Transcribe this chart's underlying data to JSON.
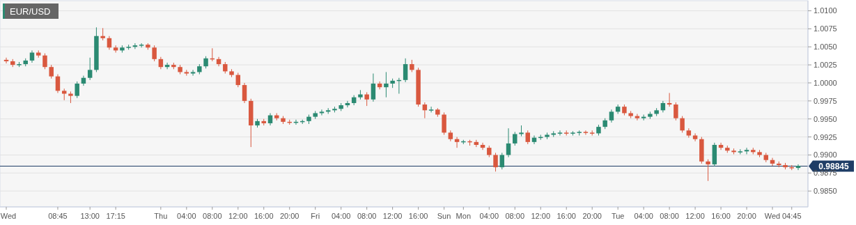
{
  "chart_data": {
    "type": "candlestick",
    "title": "EUR/USD",
    "categories": [
      "Wed",
      null,
      null,
      null,
      null,
      null,
      null,
      null,
      "08:45",
      null,
      null,
      null,
      null,
      "13:00",
      null,
      null,
      null,
      "17:15",
      null,
      null,
      null,
      null,
      null,
      null,
      "Thu",
      null,
      null,
      null,
      "04:00",
      null,
      null,
      null,
      "08:00",
      null,
      null,
      null,
      "12:00",
      null,
      null,
      null,
      "16:00",
      null,
      null,
      null,
      "20:00",
      null,
      null,
      null,
      "Fri",
      null,
      null,
      null,
      "04:00",
      null,
      null,
      null,
      "08:00",
      null,
      null,
      null,
      "12:00",
      null,
      null,
      null,
      "16:00",
      null,
      null,
      null,
      "Sun",
      null,
      null,
      "Mon",
      null,
      null,
      null,
      "04:00",
      null,
      null,
      null,
      "08:00",
      null,
      null,
      null,
      "12:00",
      null,
      null,
      null,
      "16:00",
      null,
      null,
      null,
      "20:00",
      null,
      null,
      null,
      "Tue",
      null,
      null,
      null,
      "04:00",
      null,
      null,
      null,
      "08:00",
      null,
      null,
      null,
      "12:00",
      null,
      null,
      null,
      "16:00",
      null,
      null,
      null,
      "20:00",
      null,
      null,
      null,
      "Wed",
      null,
      null,
      "04:45",
      null
    ],
    "ohlc": [
      [
        1.0032,
        1.0035,
        1.0027,
        1.003
      ],
      [
        1.003,
        1.0033,
        1.0022,
        1.0025
      ],
      [
        1.0025,
        1.0029,
        1.0022,
        1.0026
      ],
      [
        1.0026,
        1.0034,
        1.0023,
        1.0031
      ],
      [
        1.0031,
        1.0045,
        1.0028,
        1.0042
      ],
      [
        1.0042,
        1.0045,
        1.0035,
        1.0038
      ],
      [
        1.0038,
        1.0041,
        1.0019,
        1.0022
      ],
      [
        1.0022,
        1.0025,
        1.0006,
        1.0009
      ],
      [
        1.0009,
        1.0012,
        0.9986,
        0.9989
      ],
      [
        0.9989,
        0.9992,
        0.9976,
        0.9985
      ],
      [
        0.9985,
        0.9988,
        0.9972,
        0.9982
      ],
      [
        0.9982,
        1.0002,
        0.9979,
        0.9999
      ],
      [
        0.9999,
        1.001,
        0.9996,
        1.0007
      ],
      [
        1.0007,
        1.0035,
        1.0004,
        1.0018
      ],
      [
        1.0018,
        1.0077,
        1.0015,
        1.0065
      ],
      [
        1.0065,
        1.0076,
        1.0059,
        1.0062
      ],
      [
        1.0062,
        1.0065,
        1.0046,
        1.0049
      ],
      [
        1.0049,
        1.0052,
        1.0042,
        1.0045
      ],
      [
        1.0045,
        1.0052,
        1.0042,
        1.0049
      ],
      [
        1.0049,
        1.0053,
        1.0046,
        1.005
      ],
      [
        1.005,
        1.0055,
        1.0047,
        1.0052
      ],
      [
        1.0052,
        1.0055,
        1.0049,
        1.0053
      ],
      [
        1.0053,
        1.0055,
        1.0046,
        1.0049
      ],
      [
        1.0049,
        1.0052,
        1.003,
        1.0033
      ],
      [
        1.0033,
        1.0036,
        1.0019,
        1.0022
      ],
      [
        1.0022,
        1.0028,
        1.0019,
        1.0025
      ],
      [
        1.0025,
        1.0028,
        1.0019,
        1.0022
      ],
      [
        1.0022,
        1.0025,
        1.0012,
        1.0015
      ],
      [
        1.0015,
        1.0018,
        1.001,
        1.0013
      ],
      [
        1.0013,
        1.0018,
        1.001,
        1.0015
      ],
      [
        1.0015,
        1.0026,
        1.0012,
        1.0023
      ],
      [
        1.0023,
        1.0037,
        1.002,
        1.0034
      ],
      [
        1.0034,
        1.0048,
        1.003,
        1.0033
      ],
      [
        1.0033,
        1.0036,
        1.0023,
        1.0026
      ],
      [
        1.0026,
        1.0029,
        1.0013,
        1.0016
      ],
      [
        1.0016,
        1.0019,
        1.0008,
        1.0011
      ],
      [
        1.0011,
        1.0014,
        0.9994,
        0.9997
      ],
      [
        0.9997,
        1.0,
        0.9972,
        0.9975
      ],
      [
        0.9975,
        0.9978,
        0.9911,
        0.9941
      ],
      [
        0.9941,
        0.995,
        0.9938,
        0.9947
      ],
      [
        0.9947,
        0.995,
        0.9941,
        0.9944
      ],
      [
        0.9944,
        0.9958,
        0.9941,
        0.9955
      ],
      [
        0.9955,
        0.9958,
        0.9948,
        0.9951
      ],
      [
        0.9951,
        0.9954,
        0.9943,
        0.9946
      ],
      [
        0.9946,
        0.9949,
        0.9942,
        0.9945
      ],
      [
        0.9945,
        0.9949,
        0.9942,
        0.9946
      ],
      [
        0.9946,
        0.9949,
        0.9943,
        0.9947
      ],
      [
        0.9947,
        0.9956,
        0.9943,
        0.9953
      ],
      [
        0.9953,
        0.9961,
        0.995,
        0.9958
      ],
      [
        0.9958,
        0.9963,
        0.9955,
        0.996
      ],
      [
        0.996,
        0.9965,
        0.9957,
        0.9962
      ],
      [
        0.9962,
        0.9967,
        0.9959,
        0.9964
      ],
      [
        0.9964,
        0.9972,
        0.9961,
        0.9969
      ],
      [
        0.9969,
        0.9975,
        0.9966,
        0.9972
      ],
      [
        0.9972,
        0.9983,
        0.9969,
        0.998
      ],
      [
        0.998,
        0.999,
        0.9977,
        0.9984
      ],
      [
        0.9984,
        0.9987,
        0.9968,
        0.9977
      ],
      [
        0.9977,
        1.0013,
        0.9974,
        0.9999
      ],
      [
        0.9999,
        1.0002,
        0.9991,
        0.9994
      ],
      [
        0.9994,
        1.0015,
        0.998,
        0.9999
      ],
      [
        0.9999,
        1.0006,
        0.9993,
        1.0003
      ],
      [
        1.0003,
        1.0007,
        0.9985,
        1.0004
      ],
      [
        1.0004,
        1.0034,
        1.0001,
        1.0026
      ],
      [
        1.0026,
        1.0032,
        1.0015,
        1.0018
      ],
      [
        1.0018,
        1.0021,
        0.9967,
        0.997
      ],
      [
        0.997,
        0.9973,
        0.9951,
        0.9962
      ],
      [
        0.9962,
        0.9967,
        0.9959,
        0.9963
      ],
      [
        0.9963,
        0.9965,
        0.9953,
        0.9956
      ],
      [
        0.9956,
        0.9959,
        0.9928,
        0.9931
      ],
      [
        0.9931,
        0.9934,
        0.9919,
        0.9922
      ],
      [
        0.9922,
        0.9925,
        0.991,
        0.9918
      ],
      [
        0.9918,
        0.9921,
        0.9915,
        0.9919
      ],
      [
        0.9919,
        0.9921,
        0.9913,
        0.9918
      ],
      [
        0.9918,
        0.9921,
        0.9911,
        0.9914
      ],
      [
        0.9914,
        0.9917,
        0.9907,
        0.991
      ],
      [
        0.991,
        0.9913,
        0.9897,
        0.99
      ],
      [
        0.99,
        0.9903,
        0.9877,
        0.9883
      ],
      [
        0.9883,
        0.9903,
        0.988,
        0.99
      ],
      [
        0.99,
        0.9937,
        0.9897,
        0.9916
      ],
      [
        0.9916,
        0.9932,
        0.9913,
        0.9929
      ],
      [
        0.9929,
        0.9941,
        0.9926,
        0.9931
      ],
      [
        0.9931,
        0.9934,
        0.9915,
        0.9918
      ],
      [
        0.9918,
        0.9927,
        0.9915,
        0.9924
      ],
      [
        0.9924,
        0.9928,
        0.9921,
        0.9925
      ],
      [
        0.9925,
        0.9931,
        0.9922,
        0.9928
      ],
      [
        0.9928,
        0.9933,
        0.9925,
        0.993
      ],
      [
        0.993,
        0.9934,
        0.9927,
        0.9931
      ],
      [
        0.9931,
        0.9934,
        0.9927,
        0.993
      ],
      [
        0.993,
        0.9933,
        0.9927,
        0.9931
      ],
      [
        0.9931,
        0.9934,
        0.9927,
        0.9932
      ],
      [
        0.9932,
        0.9934,
        0.9928,
        0.9931
      ],
      [
        0.9931,
        0.9934,
        0.9927,
        0.993
      ],
      [
        0.993,
        0.9942,
        0.9927,
        0.9939
      ],
      [
        0.9939,
        0.9951,
        0.9936,
        0.9948
      ],
      [
        0.9948,
        0.9963,
        0.9945,
        0.996
      ],
      [
        0.996,
        0.997,
        0.9957,
        0.9967
      ],
      [
        0.9967,
        0.997,
        0.9955,
        0.9958
      ],
      [
        0.9958,
        0.9961,
        0.9951,
        0.9954
      ],
      [
        0.9954,
        0.9957,
        0.9948,
        0.9951
      ],
      [
        0.9951,
        0.9956,
        0.9948,
        0.9953
      ],
      [
        0.9953,
        0.996,
        0.995,
        0.9957
      ],
      [
        0.9957,
        0.9965,
        0.9954,
        0.9962
      ],
      [
        0.9962,
        0.9975,
        0.9959,
        0.9972
      ],
      [
        0.9972,
        0.9986,
        0.9967,
        0.997
      ],
      [
        0.997,
        0.9973,
        0.9948,
        0.9951
      ],
      [
        0.9951,
        0.9954,
        0.9931,
        0.9934
      ],
      [
        0.9934,
        0.9937,
        0.9924,
        0.9927
      ],
      [
        0.9927,
        0.993,
        0.9919,
        0.9922
      ],
      [
        0.9922,
        0.9925,
        0.9888,
        0.9891
      ],
      [
        0.9891,
        0.9894,
        0.9864,
        0.9887
      ],
      [
        0.9887,
        0.9917,
        0.9884,
        0.9914
      ],
      [
        0.9914,
        0.9917,
        0.9907,
        0.991
      ],
      [
        0.991,
        0.9913,
        0.9903,
        0.9906
      ],
      [
        0.9906,
        0.9909,
        0.9901,
        0.9904
      ],
      [
        0.9904,
        0.9908,
        0.9901,
        0.9905
      ],
      [
        0.9905,
        0.991,
        0.9901,
        0.9907
      ],
      [
        0.9907,
        0.991,
        0.9901,
        0.9904
      ],
      [
        0.9904,
        0.9907,
        0.9897,
        0.99
      ],
      [
        0.99,
        0.9903,
        0.989,
        0.9893
      ],
      [
        0.9893,
        0.9896,
        0.9885,
        0.9888
      ],
      [
        0.9888,
        0.9891,
        0.9883,
        0.9886
      ],
      [
        0.9886,
        0.9889,
        0.988,
        0.9883
      ],
      [
        0.9883,
        0.9886,
        0.9879,
        0.9882
      ],
      [
        0.9882,
        0.9887,
        0.9879,
        0.9885
      ]
    ],
    "colors": [
      "#d9583f",
      "#d9583f",
      "#2b8a72",
      "#2b8a72",
      "#2b8a72",
      "#d9583f",
      "#d9583f",
      "#d9583f",
      "#d9583f",
      "#d9583f",
      "#d9583f",
      "#2b8a72",
      "#2b8a72",
      "#2b8a72",
      "#2b8a72",
      "#d9583f",
      "#d9583f",
      "#d9583f",
      "#2b8a72",
      "#2b8a72",
      "#2b8a72",
      "#2b8a72",
      "#d9583f",
      "#d9583f",
      "#d9583f",
      "#2b8a72",
      "#d9583f",
      "#d9583f",
      "#d9583f",
      "#2b8a72",
      "#2b8a72",
      "#2b8a72",
      "#d9583f",
      "#d9583f",
      "#d9583f",
      "#d9583f",
      "#d9583f",
      "#d9583f",
      "#d9583f",
      "#2b8a72",
      "#d9583f",
      "#2b8a72",
      "#d9583f",
      "#d9583f",
      "#d9583f",
      "#2b8a72",
      "#2b8a72",
      "#2b8a72",
      "#2b8a72",
      "#2b8a72",
      "#2b8a72",
      "#2b8a72",
      "#2b8a72",
      "#2b8a72",
      "#2b8a72",
      "#2b8a72",
      "#d9583f",
      "#2b8a72",
      "#d9583f",
      "#2b8a72",
      "#2b8a72",
      "#2b8a72",
      "#2b8a72",
      "#d9583f",
      "#d9583f",
      "#d9583f",
      "#2b8a72",
      "#d9583f",
      "#d9583f",
      "#d9583f",
      "#d9583f",
      "#2b8a72",
      "#d9583f",
      "#d9583f",
      "#d9583f",
      "#d9583f",
      "#d9583f",
      "#2b8a72",
      "#2b8a72",
      "#2b8a72",
      "#2b8a72",
      "#d9583f",
      "#2b8a72",
      "#2b8a72",
      "#2b8a72",
      "#2b8a72",
      "#2b8a72",
      "#d9583f",
      "#2b8a72",
      "#2b8a72",
      "#d9583f",
      "#d9583f",
      "#2b8a72",
      "#2b8a72",
      "#2b8a72",
      "#2b8a72",
      "#d9583f",
      "#d9583f",
      "#d9583f",
      "#2b8a72",
      "#2b8a72",
      "#2b8a72",
      "#2b8a72",
      "#d9583f",
      "#d9583f",
      "#d9583f",
      "#d9583f",
      "#d9583f",
      "#d9583f",
      "#d9583f",
      "#2b8a72",
      "#d9583f",
      "#d9583f",
      "#d9583f",
      "#2b8a72",
      "#2b8a72",
      "#d9583f",
      "#d9583f",
      "#d9583f",
      "#d9583f",
      "#d9583f",
      "#d9583f",
      "#d9583f",
      "#2b8a72"
    ],
    "ylim": [
      0.9828,
      1.0114
    ],
    "yticks": [
      {
        "value": 0.985,
        "label": "0.9850"
      },
      {
        "value": 0.9875,
        "label": "0.9875"
      },
      {
        "value": 0.99,
        "label": "0.9900"
      },
      {
        "value": 0.9925,
        "label": "0.9925"
      },
      {
        "value": 0.995,
        "label": "0.9950"
      },
      {
        "value": 0.9975,
        "label": "0.9975"
      },
      {
        "value": 1.0,
        "label": "1.0000"
      },
      {
        "value": 1.0025,
        "label": "1.0025"
      },
      {
        "value": 1.005,
        "label": "1.0050"
      },
      {
        "value": 1.0075,
        "label": "1.0075"
      },
      {
        "value": 1.01,
        "label": "1.0100"
      }
    ],
    "grid": "y",
    "ref_lines": [
      {
        "axis": "y",
        "value": 0.98845,
        "label": "0.98845",
        "color": "#1f3d66"
      }
    ]
  }
}
